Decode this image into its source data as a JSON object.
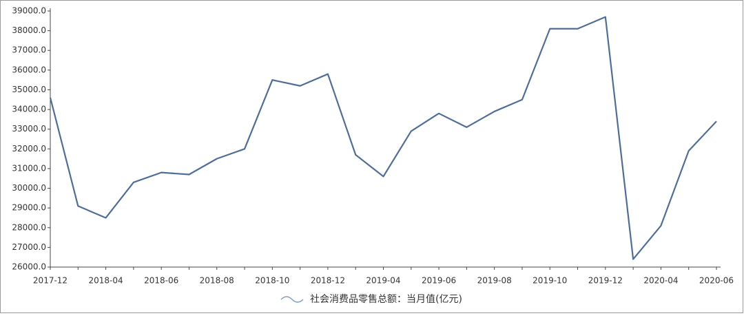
{
  "chart_data": {
    "type": "line",
    "categories": [
      "2017-12",
      null,
      "2018-04",
      null,
      "2018-06",
      null,
      "2018-08",
      null,
      "2018-10",
      null,
      "2018-12",
      null,
      "2019-04",
      null,
      "2019-06",
      null,
      "2019-08",
      null,
      "2019-10",
      null,
      "2019-12",
      null,
      "2020-04",
      null,
      "2020-06"
    ],
    "series": [
      {
        "name": "社会消费品零售总额：当月值(亿元)",
        "color": "#4f6d9a",
        "values": [
          34600,
          29100,
          28500,
          30300,
          30800,
          30700,
          31500,
          32000,
          35500,
          35200,
          35800,
          31700,
          30600,
          32900,
          33800,
          33100,
          33900,
          34500,
          38100,
          38100,
          38700,
          26400,
          28100,
          31900,
          33400
        ]
      }
    ],
    "ylim": [
      26000,
      39000
    ],
    "yticks": [
      {
        "value": 26000,
        "label": "26000.0"
      },
      {
        "value": 27000,
        "label": "27000.0"
      },
      {
        "value": 28000,
        "label": "28000.0"
      },
      {
        "value": 29000,
        "label": "29000.0"
      },
      {
        "value": 30000,
        "label": "30000.0"
      },
      {
        "value": 31000,
        "label": "31000.0"
      },
      {
        "value": 32000,
        "label": "32000.0"
      },
      {
        "value": 33000,
        "label": "33000.0"
      },
      {
        "value": 34000,
        "label": "34000.0"
      },
      {
        "value": 35000,
        "label": "35000.0"
      },
      {
        "value": 36000,
        "label": "36000.0"
      },
      {
        "value": 37000,
        "label": "37000.0"
      },
      {
        "value": 38000,
        "label": "38000.0"
      },
      {
        "value": 39000,
        "label": "39000.0"
      }
    ],
    "grid": false
  }
}
